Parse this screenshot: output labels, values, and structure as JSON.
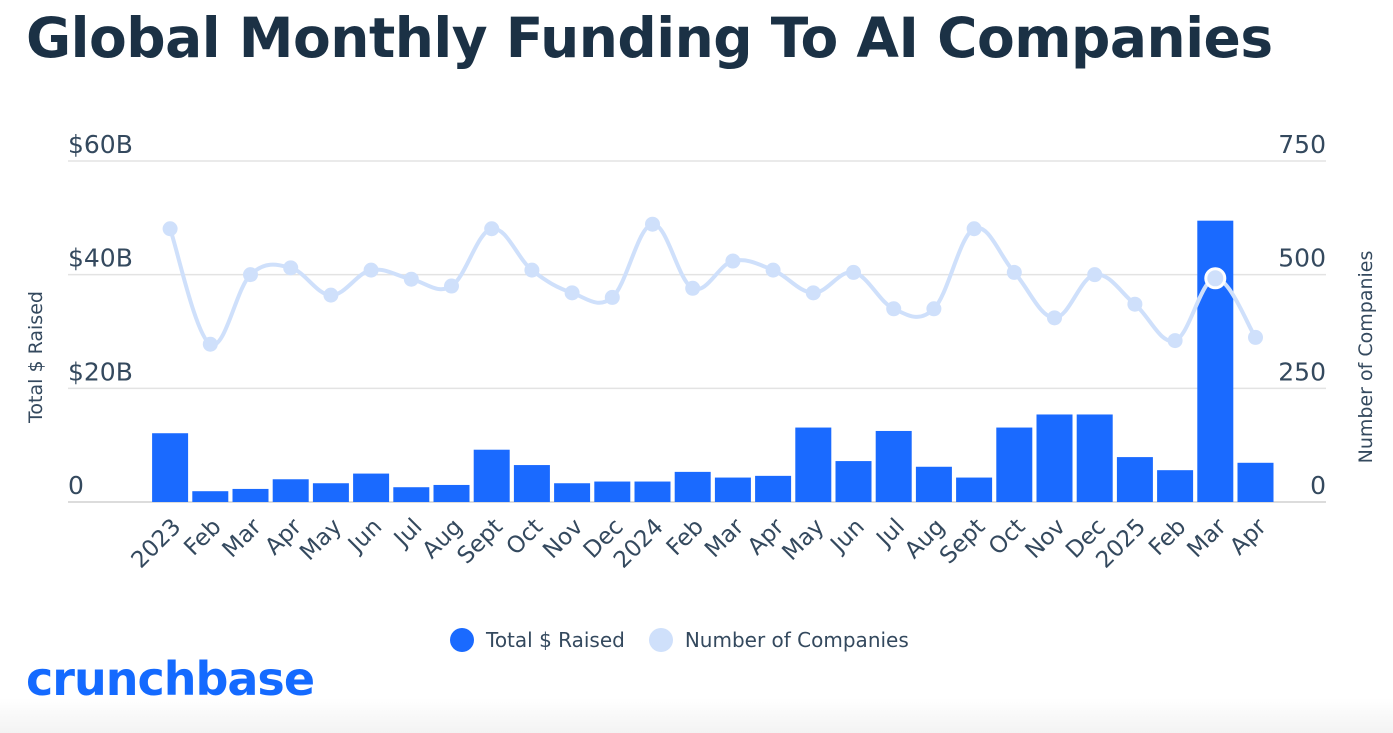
{
  "header": {
    "title": "Global Monthly Funding To AI Companies"
  },
  "brand": {
    "logo_text": "crunchbase"
  },
  "colors": {
    "bars": "#1a6aff",
    "line": "#cfe0fb",
    "title": "#1b3145",
    "grid": "#e3e3e3"
  },
  "chart_data": {
    "type": "bar",
    "categories": [
      "2023",
      "Feb",
      "Mar",
      "Apr",
      "May",
      "Jun",
      "Jul",
      "Aug",
      "Sept",
      "Oct",
      "Nov",
      "Dec",
      "2024",
      "Feb",
      "Mar",
      "Apr",
      "May",
      "Jun",
      "Jul",
      "Aug",
      "Sept",
      "Oct",
      "Nov",
      "Dec",
      "2025",
      "Feb",
      "Mar",
      "Apr"
    ],
    "series": [
      {
        "name": "Total $ Raised",
        "type": "bar",
        "axis": "left",
        "values": [
          12.1,
          1.9,
          2.3,
          4.0,
          3.3,
          5.0,
          2.6,
          3.0,
          9.2,
          6.5,
          3.3,
          3.6,
          3.6,
          5.3,
          4.3,
          4.6,
          13.1,
          7.2,
          12.5,
          6.2,
          4.3,
          13.1,
          15.4,
          15.4,
          7.9,
          5.6,
          49.5,
          6.9
        ]
      },
      {
        "name": "Number of Companies",
        "type": "line",
        "axis": "right",
        "values": [
          601,
          347,
          500,
          515,
          455,
          510,
          490,
          475,
          601,
          510,
          460,
          450,
          611,
          470,
          530,
          510,
          460,
          505,
          425,
          425,
          601,
          505,
          405,
          500,
          435,
          355,
          492,
          362
        ]
      }
    ],
    "y_left": {
      "label": "Total $ Raised",
      "ylim": [
        0,
        60
      ],
      "ticks": [
        0,
        20,
        40,
        60
      ],
      "tick_labels": [
        "0",
        "$20B",
        "$40B",
        "$60B"
      ]
    },
    "y_right": {
      "label": "Number of Companies",
      "ylim": [
        0,
        750
      ],
      "ticks": [
        0,
        250,
        500,
        750
      ],
      "tick_labels": [
        "0",
        "250",
        "500",
        "750"
      ]
    },
    "highlighted_index": 26,
    "grid": true,
    "legend_position": "bottom"
  }
}
